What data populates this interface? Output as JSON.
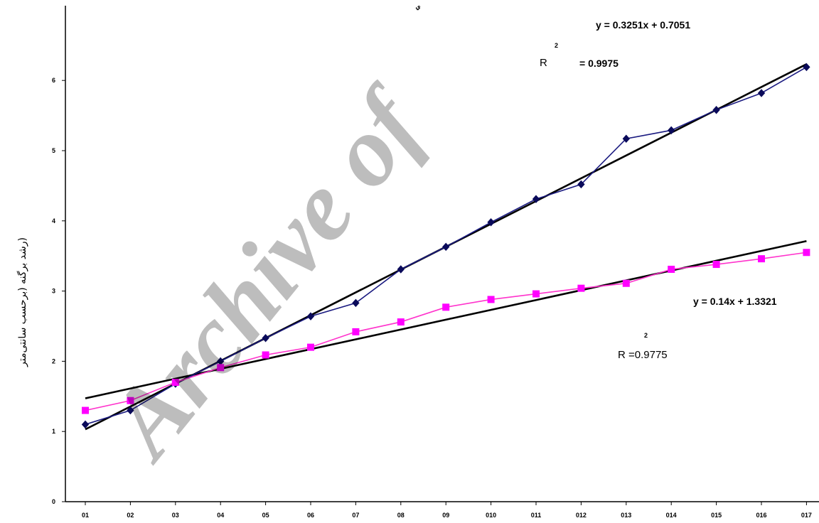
{
  "chart_data": {
    "type": "line",
    "title": "",
    "xlabel": "",
    "ylabel": "(رشد برگنه (برحسب سانتی‌متر",
    "categories": [
      "01",
      "02",
      "03",
      "04",
      "05",
      "06",
      "07",
      "08",
      "09",
      "010",
      "011",
      "012",
      "013",
      "014",
      "015",
      "016",
      "017"
    ],
    "x_tick_labels": [
      "01",
      "02",
      "03",
      "04",
      "05",
      "06",
      "07",
      "08",
      "09",
      "010",
      "011",
      "012",
      "013",
      "014",
      "015",
      "016",
      "017"
    ],
    "y_ticks": [
      "0",
      "1",
      "2",
      "3",
      "4",
      "5",
      "6"
    ],
    "ylim": [
      0,
      7
    ],
    "grid": false,
    "series": [
      {
        "color": "#1a1a80",
        "marker": "diamond",
        "marker_color": "#0a0a5a",
        "values": [
          1.1,
          1.3,
          1.68,
          2.0,
          2.33,
          2.64,
          2.83,
          3.31,
          3.63,
          3.98,
          4.31,
          4.52,
          5.17,
          5.29,
          5.58,
          5.82,
          6.19
        ]
      },
      {
        "color": "#ff33cc",
        "marker": "square",
        "marker_color": "#ff00ff",
        "values": [
          1.3,
          1.44,
          1.7,
          1.91,
          2.09,
          2.2,
          2.42,
          2.56,
          2.77,
          2.88,
          2.96,
          3.04,
          3.11,
          3.31,
          3.38,
          3.46,
          3.55
        ]
      }
    ],
    "trendlines": [
      {
        "slope": 0.3251,
        "intercept": 0.7051,
        "color": "#000000"
      },
      {
        "slope": 0.14,
        "intercept": 1.3321,
        "color": "#000000"
      }
    ],
    "annotations": {
      "eq1": "y = 0.3251x + 0.7051",
      "r2_1_label": "R",
      "r2_1_sup": "2",
      "r2_1_value": "= 0.9975",
      "eq2": "y = 0.14x + 1.3321",
      "r2_2_sup": "2",
      "r2_2_value": "R =0.9775"
    },
    "partial_title": "ي"
  },
  "watermark": {
    "text": "Archive of"
  }
}
